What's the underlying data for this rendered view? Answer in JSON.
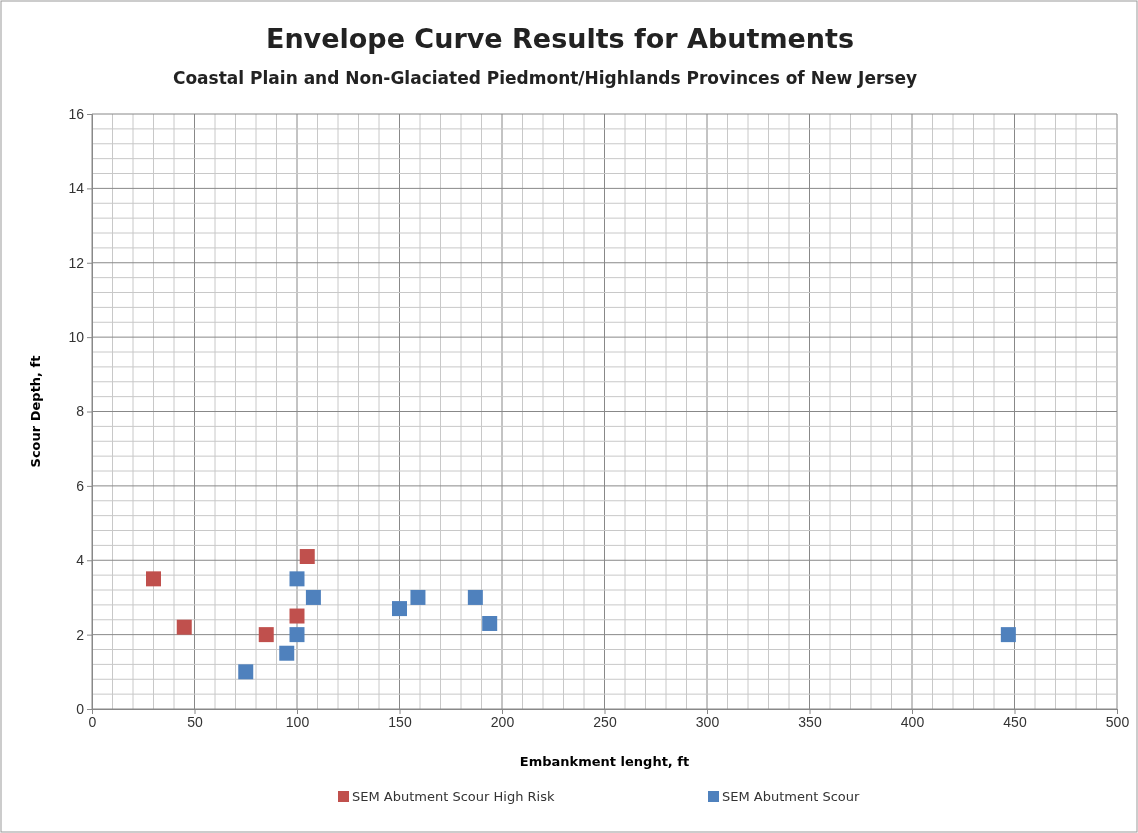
{
  "chart_data": {
    "type": "scatter",
    "title": "Envelope Curve Results for Abutments",
    "subtitle": "Coastal Plain and Non-Glaciated Piedmont/Highlands Provinces of New Jersey",
    "xlabel": "Embankment lenght, ft",
    "ylabel": "Scour Depth, ft",
    "xlim": [
      0,
      500
    ],
    "xticks": [
      0,
      50,
      100,
      150,
      200,
      250,
      300,
      350,
      400,
      450,
      500
    ],
    "ylim": [
      0,
      16
    ],
    "yticks": [
      0,
      2,
      4,
      6,
      8,
      10,
      12,
      14,
      16
    ],
    "grid": true,
    "legend": "bottom",
    "marker": "square",
    "series": [
      {
        "name": "SEM Abutment Scour High Risk",
        "color": "#c0504d",
        "x": [
          30,
          45,
          85,
          100,
          105
        ],
        "values": [
          3.5,
          2.2,
          2.0,
          2.5,
          4.1
        ]
      },
      {
        "name": "SEM Abutment Scour",
        "color": "#4f81bd",
        "x": [
          75,
          95,
          100,
          100,
          108,
          150,
          159,
          187,
          194,
          447
        ],
        "values": [
          1.0,
          1.5,
          2.0,
          3.5,
          3.0,
          2.7,
          3.0,
          3.0,
          2.3,
          2.0
        ]
      }
    ]
  }
}
